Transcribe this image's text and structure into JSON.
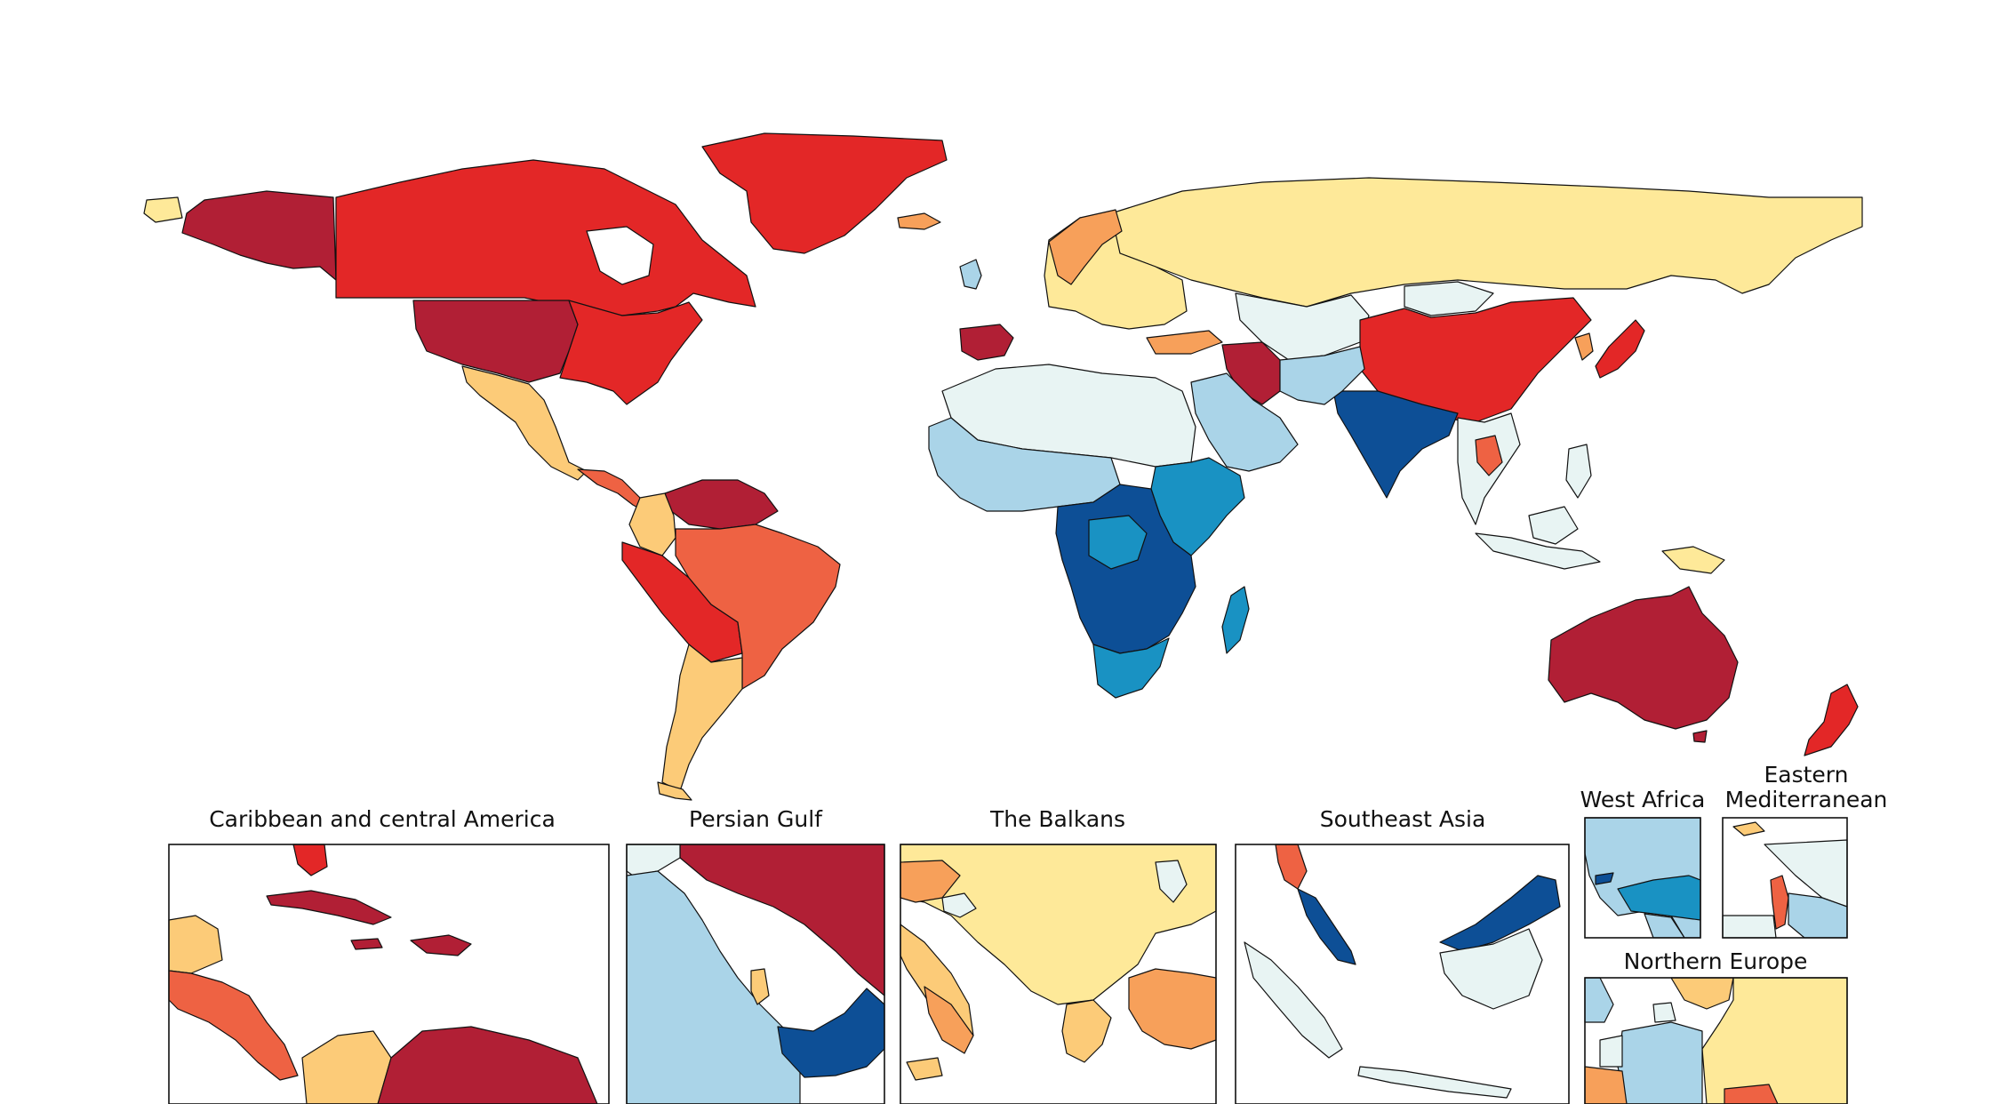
{
  "palette": {
    "dark_red": "#b11f35",
    "red": "#e32727",
    "orange_red": "#ee6243",
    "orange": "#f7a05a",
    "light_orange": "#fccb78",
    "pale_yellow": "#fee999",
    "pale_blue": "#e8f4f3",
    "light_blue": "#aad4e8",
    "mid_blue": "#1992c3",
    "dark_blue": "#0d4f96",
    "ocean": "#ffffff"
  },
  "insets": [
    {
      "key": "caribbean",
      "label": "Caribbean and central America"
    },
    {
      "key": "persian_gulf",
      "label": "Persian Gulf"
    },
    {
      "key": "balkans",
      "label": "The Balkans"
    },
    {
      "key": "southeast_asia",
      "label": "Southeast Asia"
    },
    {
      "key": "west_africa",
      "label": "West Africa"
    },
    {
      "key": "eastern_med",
      "label": "Eastern Mediterranean",
      "label_lines": [
        "Eastern",
        "Mediterranean"
      ]
    },
    {
      "key": "northern_europe",
      "label": "Northern Europe"
    }
  ],
  "regions": [
    {
      "name": "Canada",
      "color": "red"
    },
    {
      "name": "Greenland",
      "color": "red"
    },
    {
      "name": "Alaska",
      "color": "dark_red"
    },
    {
      "name": "United States (west and central)",
      "color": "dark_red"
    },
    {
      "name": "United States (east)",
      "color": "red"
    },
    {
      "name": "Mexico",
      "color": "light_orange"
    },
    {
      "name": "Central America",
      "color": "orange_red"
    },
    {
      "name": "Venezuela",
      "color": "dark_red"
    },
    {
      "name": "Colombia",
      "color": "light_orange"
    },
    {
      "name": "Brazil",
      "color": "orange_red"
    },
    {
      "name": "Peru and Bolivia",
      "color": "red"
    },
    {
      "name": "Chile and Argentina",
      "color": "light_orange"
    },
    {
      "name": "Russia",
      "color": "pale_yellow"
    },
    {
      "name": "Northern Europe",
      "color": "pale_yellow"
    },
    {
      "name": "Iberia",
      "color": "dark_red"
    },
    {
      "name": "Turkey",
      "color": "orange"
    },
    {
      "name": "Iran",
      "color": "dark_red"
    },
    {
      "name": "Central Asia",
      "color": "pale_blue"
    },
    {
      "name": "China",
      "color": "red"
    },
    {
      "name": "Japan",
      "color": "red"
    },
    {
      "name": "India",
      "color": "dark_blue"
    },
    {
      "name": "Southeast Asia",
      "color": "pale_blue"
    },
    {
      "name": "North Africa",
      "color": "pale_blue"
    },
    {
      "name": "Sahel and West Africa",
      "color": "light_blue"
    },
    {
      "name": "Arabian Peninsula",
      "color": "light_blue"
    },
    {
      "name": "East Africa",
      "color": "mid_blue"
    },
    {
      "name": "Central and southern Africa",
      "color": "dark_blue"
    },
    {
      "name": "South Africa",
      "color": "mid_blue"
    },
    {
      "name": "Madagascar",
      "color": "mid_blue"
    },
    {
      "name": "Australia",
      "color": "dark_red"
    },
    {
      "name": "New Zealand",
      "color": "red"
    },
    {
      "name": "Papua New Guinea",
      "color": "pale_yellow"
    }
  ]
}
